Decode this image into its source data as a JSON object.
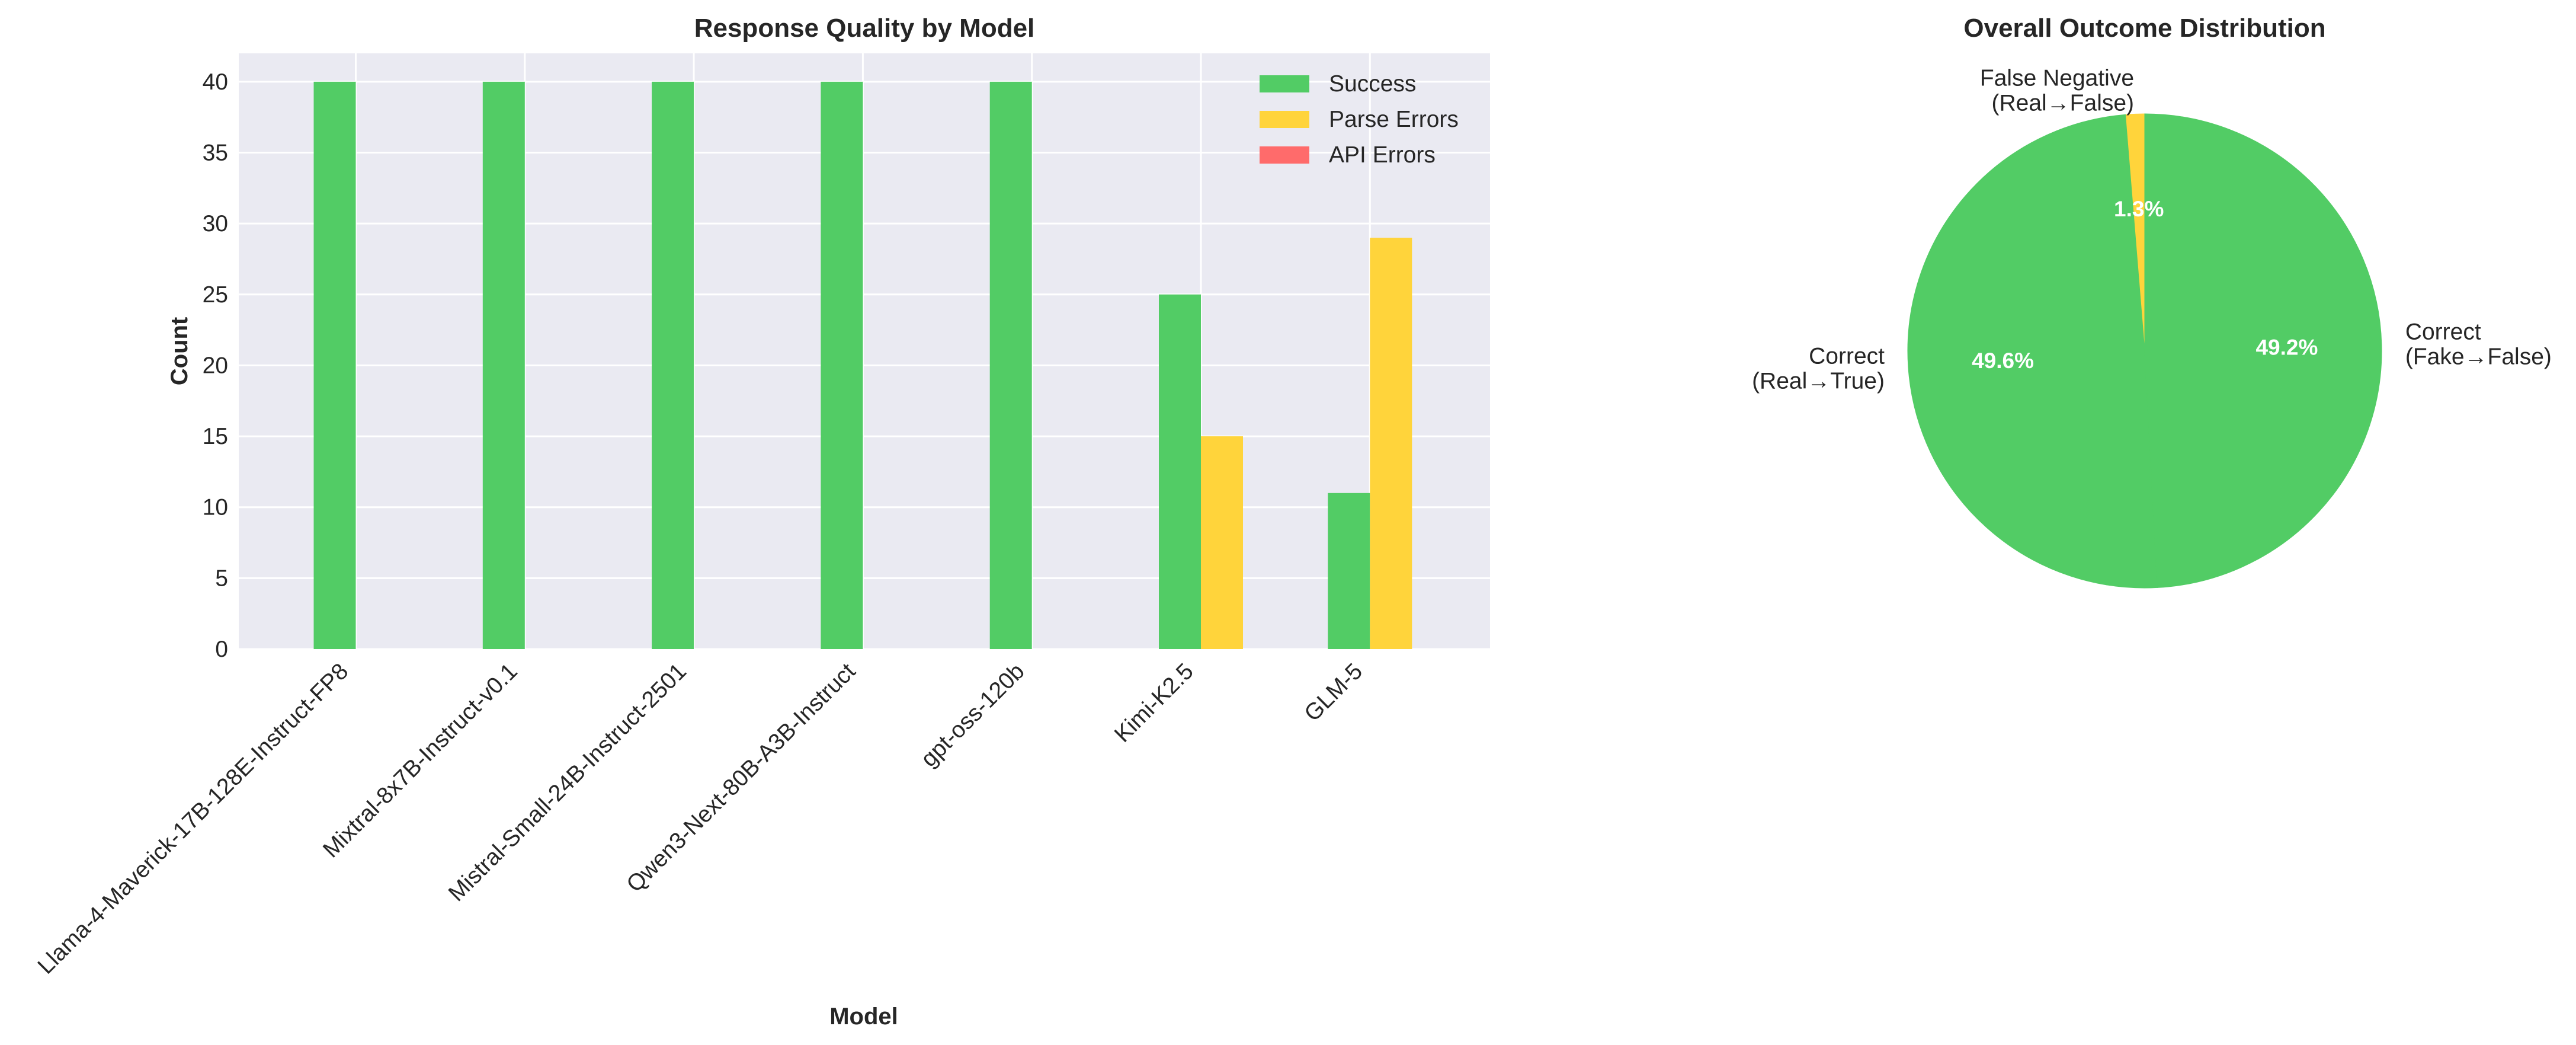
{
  "chart_data": [
    {
      "type": "bar",
      "title": "Response Quality by Model",
      "xlabel": "Model",
      "ylabel": "Count",
      "ylim": [
        0,
        42
      ],
      "yticks": [
        0,
        5,
        10,
        15,
        20,
        25,
        30,
        35,
        40
      ],
      "grid": true,
      "legend_position": "top-right",
      "categories": [
        "Llama-4-Maverick-17B-128E-Instruct-FP8",
        "Mixtral-8x7B-Instruct-v0.1",
        "Mistral-Small-24B-Instruct-2501",
        "Qwen3-Next-80B-A3B-Instruct",
        "gpt-oss-120b",
        "Kimi-K2.5",
        "GLM-5"
      ],
      "series": [
        {
          "name": "Success",
          "color": "#52cc65",
          "values": [
            40,
            40,
            40,
            40,
            40,
            25,
            11
          ]
        },
        {
          "name": "Parse Errors",
          "color": "#ffd43b",
          "values": [
            0,
            0,
            0,
            0,
            0,
            15,
            29
          ]
        },
        {
          "name": "API Errors",
          "color": "#ff6b6b",
          "values": [
            0,
            0,
            0,
            0,
            0,
            0,
            0
          ]
        }
      ]
    },
    {
      "type": "pie",
      "title": "Overall Outcome Distribution",
      "slices": [
        {
          "label": "Correct\n(Fake→False)",
          "value": 49.2,
          "pct_label": "49.2%",
          "color": "#52cc65"
        },
        {
          "label": "Correct\n(Real→True)",
          "value": 49.6,
          "pct_label": "49.6%",
          "color": "#52cc65"
        },
        {
          "label": "False Negative\n(Real→False)",
          "value": 1.3,
          "pct_label": "1.3%",
          "color": "#ffd43b"
        }
      ]
    }
  ]
}
